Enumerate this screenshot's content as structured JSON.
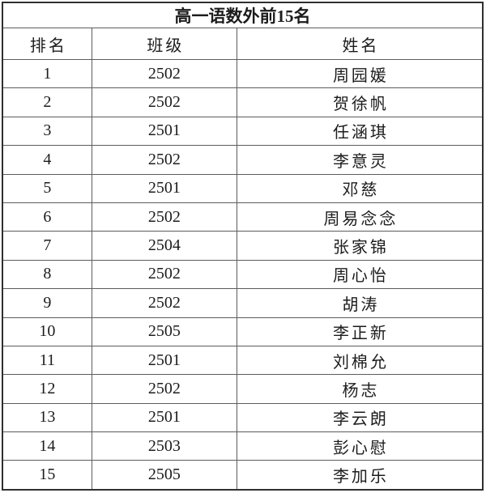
{
  "title": "高一语数外前15名",
  "table": {
    "headers": {
      "rank": "排名",
      "class": "班级",
      "name": "姓名"
    },
    "rows": [
      {
        "rank": "1",
        "class": "2502",
        "name": "周园媛"
      },
      {
        "rank": "2",
        "class": "2502",
        "name": "贺徐帆"
      },
      {
        "rank": "3",
        "class": "2501",
        "name": "任涵琪"
      },
      {
        "rank": "4",
        "class": "2502",
        "name": "李意灵"
      },
      {
        "rank": "5",
        "class": "2501",
        "name": "邓慈"
      },
      {
        "rank": "6",
        "class": "2502",
        "name": "周易念念"
      },
      {
        "rank": "7",
        "class": "2504",
        "name": "张家锦"
      },
      {
        "rank": "8",
        "class": "2502",
        "name": "周心怡"
      },
      {
        "rank": "9",
        "class": "2502",
        "name": "胡涛"
      },
      {
        "rank": "10",
        "class": "2505",
        "name": "李正新"
      },
      {
        "rank": "11",
        "class": "2501",
        "name": "刘棉允"
      },
      {
        "rank": "12",
        "class": "2502",
        "name": "杨志"
      },
      {
        "rank": "13",
        "class": "2501",
        "name": "李云朗"
      },
      {
        "rank": "14",
        "class": "2503",
        "name": "彭心慰"
      },
      {
        "rank": "15",
        "class": "2505",
        "name": "李加乐"
      }
    ]
  },
  "colors": {
    "background": "#ffffff",
    "text": "#1c1c1c",
    "border_outer": "#2f2f2f",
    "border_inner": "#5c5c5c"
  }
}
